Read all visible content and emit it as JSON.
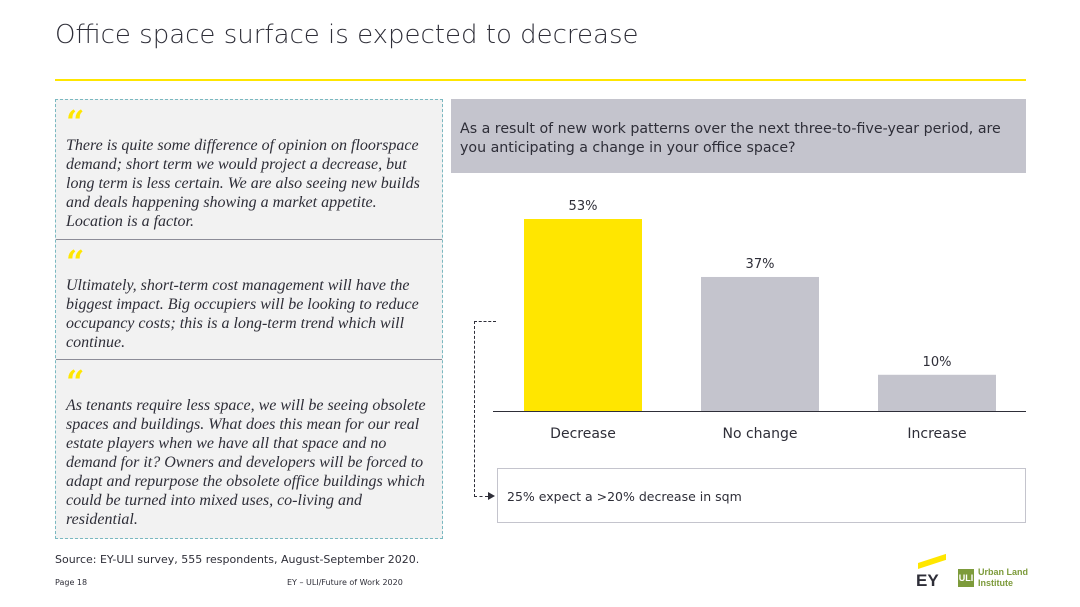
{
  "header": {
    "title": "Office space surface is expected to decrease"
  },
  "quotes": [
    {
      "mark": "“",
      "text": "There is quite some difference of opinion on floorspace demand; short term we would project a decrease, but long term is less certain. We are also seeing new builds and deals happening showing a market appetite. Location is a factor."
    },
    {
      "mark": "“",
      "text": "Ultimately, short-term cost management will have the biggest impact. Big occupiers will be looking to reduce occupancy costs; this is a long-term trend which will continue."
    },
    {
      "mark": "“",
      "text": "As tenants require less space, we will be seeing obsolete spaces and buildings. What does this mean for our real estate players when we have all that space and no demand for it? Owners and developers will be forced to adapt and repurpose the obsolete office buildings which could be turned into mixed uses, co-living and residential."
    }
  ],
  "question": "As a result of new work patterns over the next three-to-five-year period, are you anticipating a change in your office space?",
  "chart_data": {
    "type": "bar",
    "title": "",
    "categories": [
      "Decrease",
      "No change",
      "Increase"
    ],
    "values": [
      53,
      37,
      10
    ],
    "value_labels": [
      "53%",
      "37%",
      "10%"
    ],
    "colors": [
      "#ffe600",
      "#c4c4cd",
      "#c4c4cd"
    ],
    "xlabel": "",
    "ylabel": "",
    "ylim": [
      0,
      53
    ],
    "grid": false,
    "legend": "none"
  },
  "callout": "25% expect a >20% decrease in sqm",
  "footer": {
    "source": "Source: EY-ULI survey, 555 respondents, August-September 2020.",
    "page": "Page 18",
    "publication": "EY – ULI/Future of Work 2020"
  },
  "logos": {
    "ey": "EY",
    "uli_mark": "ULI",
    "uli_line1": "Urban Land",
    "uli_line2": "Institute"
  }
}
